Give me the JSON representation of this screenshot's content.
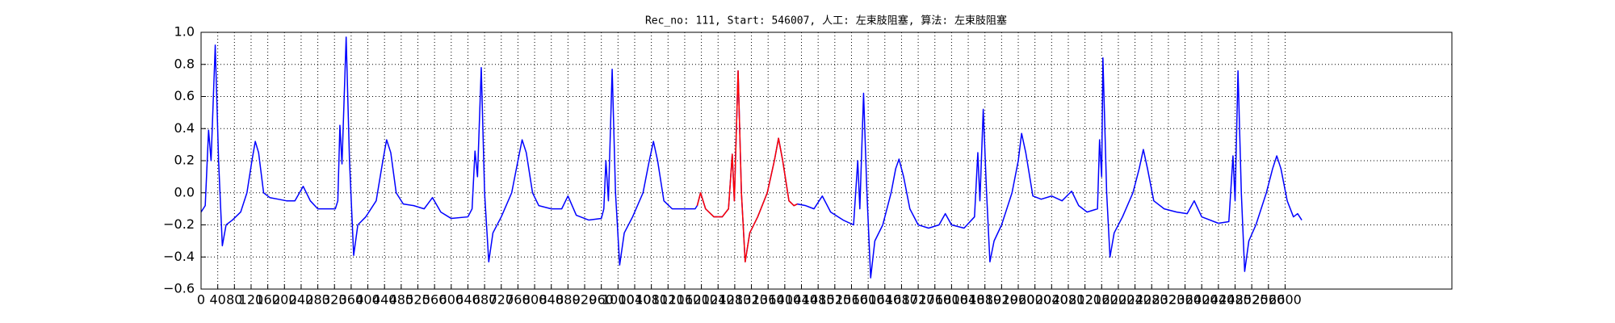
{
  "chart_data": {
    "type": "line",
    "title": "Rec_no: 111, Start: 546007, 人工: 左束肢阻塞, 算法: 左束肢阻塞",
    "xlim": [
      0,
      3000
    ],
    "ylim": [
      -0.6,
      1.0
    ],
    "grid": true,
    "xticks": [
      0,
      40,
      80,
      120,
      160,
      200,
      240,
      280,
      320,
      360,
      400,
      440,
      480,
      520,
      560,
      600,
      640,
      680,
      720,
      760,
      800,
      840,
      880,
      920,
      960,
      1000,
      1040,
      1080,
      1120,
      1160,
      1200,
      1240,
      1280,
      1320,
      1360,
      1400,
      1440,
      1480,
      1520,
      1560,
      1600,
      1640,
      1680,
      1720,
      1760,
      1800,
      1840,
      1880,
      1920,
      1960,
      2000,
      2040,
      2080,
      2120,
      2160,
      2200,
      2240,
      2280,
      2320,
      2360,
      2400,
      2440,
      2480,
      2520,
      2560,
      2600
    ],
    "yticks": [
      {
        "value": -0.6,
        "label": "−0.6"
      },
      {
        "value": -0.4,
        "label": "−0.4"
      },
      {
        "value": -0.2,
        "label": "−0.2"
      },
      {
        "value": 0,
        "label": "0.0"
      },
      0.2,
      0.4,
      0.6,
      0.8,
      {
        "value": 1,
        "label": "1.0"
      }
    ],
    "series": [
      {
        "color": "#0000ff",
        "x": [
          0,
          10,
          18,
          24,
          34,
          42,
          51,
          60,
          75,
          95,
          110,
          122,
          130,
          138,
          150,
          165,
          185,
          205,
          225,
          245,
          262,
          280,
          300,
          322,
          328,
          333,
          338,
          348,
          356,
          366,
          376,
          395,
          420,
          436,
          445,
          455,
          468,
          485,
          510,
          535,
          555,
          575,
          600,
          640,
          650,
          657,
          663,
          672,
          680,
          690,
          700,
          720,
          745,
          760,
          770,
          780,
          795,
          810,
          840,
          865,
          880,
          900,
          930,
          960,
          966,
          971,
          977,
          986,
          994,
          1004,
          1015,
          1035,
          1060,
          1075,
          1085,
          1095,
          1110,
          1130,
          1160,
          1185,
          1190,
          1198,
          1210,
          1230,
          1250,
          1265,
          1274,
          1279,
          1288,
          1296,
          1305,
          1316,
          1335,
          1358,
          1375,
          1385,
          1395,
          1410,
          1422,
          1430,
          1450,
          1470,
          1490,
          1510,
          1540,
          1565,
          1575,
          1580,
          1589,
          1597,
          1606,
          1616,
          1635,
          1655,
          1666,
          1674,
          1685,
          1700,
          1720,
          1745,
          1770,
          1785,
          1800,
          1830,
          1855,
          1863,
          1868,
          1876,
          1884,
          1892,
          1902,
          1920,
          1945,
          1960,
          1968,
          1978,
          1995,
          2015,
          2040,
          2065,
          2088,
          2105,
          2125,
          2150,
          2155,
          2160,
          2163,
          2172,
          2180,
          2190,
          2210,
          2235,
          2250,
          2260,
          2270,
          2285,
          2310,
          2340,
          2365,
          2382,
          2400,
          2440,
          2465,
          2475,
          2480,
          2487,
          2495,
          2503,
          2513,
          2530,
          2555,
          2570,
          2580,
          2590,
          2605,
          2620,
          2630,
          2640
        ],
        "values": [
          -0.12,
          -0.08,
          0.39,
          0.2,
          0.92,
          0.2,
          -0.33,
          -0.2,
          -0.17,
          -0.12,
          0.0,
          0.2,
          0.32,
          0.25,
          0.0,
          -0.03,
          -0.04,
          -0.05,
          -0.05,
          0.04,
          -0.05,
          -0.1,
          -0.1,
          -0.1,
          -0.05,
          0.42,
          0.18,
          0.97,
          0.2,
          -0.39,
          -0.2,
          -0.15,
          -0.05,
          0.2,
          0.33,
          0.25,
          0.0,
          -0.07,
          -0.08,
          -0.1,
          -0.03,
          -0.12,
          -0.16,
          -0.15,
          -0.1,
          0.26,
          0.1,
          0.78,
          0.0,
          -0.43,
          -0.25,
          -0.15,
          0.0,
          0.2,
          0.33,
          0.25,
          0.0,
          -0.08,
          -0.1,
          -0.1,
          -0.02,
          -0.14,
          -0.17,
          -0.16,
          -0.1,
          0.2,
          -0.05,
          0.77,
          0.0,
          -0.45,
          -0.25,
          -0.15,
          0.0,
          0.2,
          0.32,
          0.2,
          -0.05,
          -0.1,
          -0.1,
          -0.1,
          -0.08,
          0.0,
          -0.1,
          -0.15,
          -0.15,
          -0.1,
          0.24,
          -0.05,
          0.76,
          0.0,
          -0.43,
          -0.25,
          -0.15,
          0.0,
          0.2,
          0.34,
          0.2,
          -0.05,
          -0.08,
          -0.07,
          -0.08,
          -0.1,
          -0.02,
          -0.12,
          -0.17,
          -0.2,
          0.2,
          -0.1,
          0.62,
          0.0,
          -0.53,
          -0.3,
          -0.2,
          0.0,
          0.15,
          0.21,
          0.1,
          -0.1,
          -0.2,
          -0.22,
          -0.2,
          -0.13,
          -0.2,
          -0.22,
          -0.15,
          0.25,
          -0.05,
          0.52,
          0.0,
          -0.43,
          -0.3,
          -0.2,
          0.0,
          0.2,
          0.37,
          0.25,
          -0.02,
          -0.04,
          -0.02,
          -0.05,
          0.01,
          -0.08,
          -0.12,
          -0.1,
          0.33,
          0.1,
          0.84,
          0.0,
          -0.4,
          -0.25,
          -0.15,
          0.0,
          0.15,
          0.27,
          0.15,
          -0.05,
          -0.1,
          -0.12,
          -0.13,
          -0.05,
          -0.15,
          -0.19,
          -0.18,
          0.23,
          -0.05,
          0.76,
          0.0,
          -0.49,
          -0.3,
          -0.2,
          0.0,
          0.15,
          0.23,
          0.15,
          -0.05,
          -0.15,
          -0.13,
          -0.17
        ]
      },
      {
        "color": "#ff0000",
        "x": [
          1190,
          1198,
          1210,
          1230,
          1250,
          1265,
          1274,
          1279,
          1288,
          1296,
          1305,
          1316,
          1335,
          1358,
          1375,
          1385,
          1395,
          1410,
          1422,
          1430
        ],
        "values": [
          -0.08,
          0.0,
          -0.1,
          -0.15,
          -0.15,
          -0.1,
          0.24,
          -0.05,
          0.76,
          0.0,
          -0.43,
          -0.25,
          -0.15,
          0.0,
          0.2,
          0.34,
          0.2,
          -0.05,
          -0.08,
          -0.07
        ]
      }
    ]
  }
}
